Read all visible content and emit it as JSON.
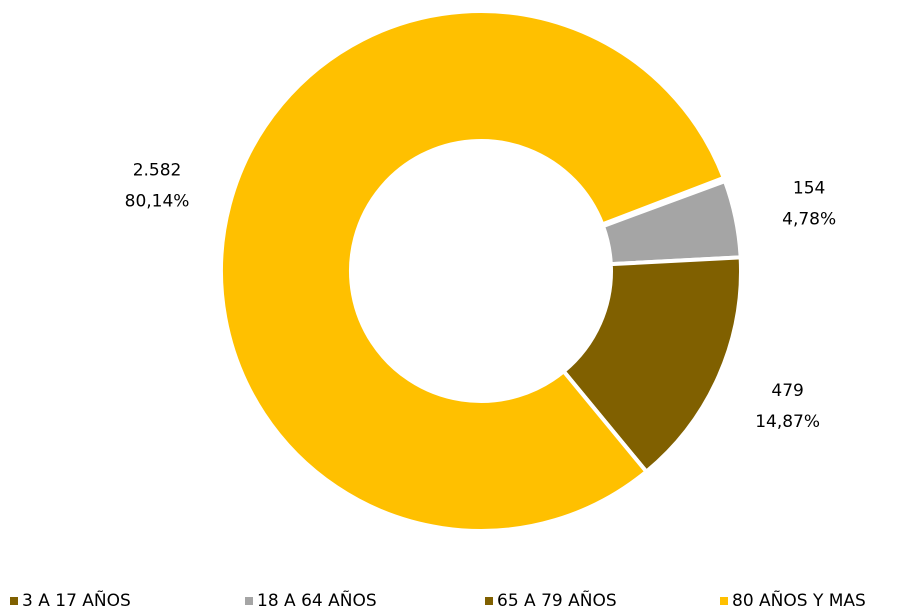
{
  "chart_data": {
    "type": "donut",
    "categories": [
      "3 A 17 AÑOS",
      "18 A 64 AÑOS",
      "65 A 79 AÑOS",
      "80 AÑOS Y MAS"
    ],
    "values": [
      7,
      154,
      479,
      2582
    ],
    "value_labels": [
      null,
      "154",
      "479",
      "2.582"
    ],
    "percentages": [
      0.22,
      4.78,
      14.87,
      80.14
    ],
    "percentage_labels": [
      null,
      "4,78%",
      "14,87%",
      "80,14%"
    ],
    "colors": [
      "#7f6000",
      "#a5a5a5",
      "#806000",
      "#ffc000"
    ],
    "legend": "bottom"
  }
}
